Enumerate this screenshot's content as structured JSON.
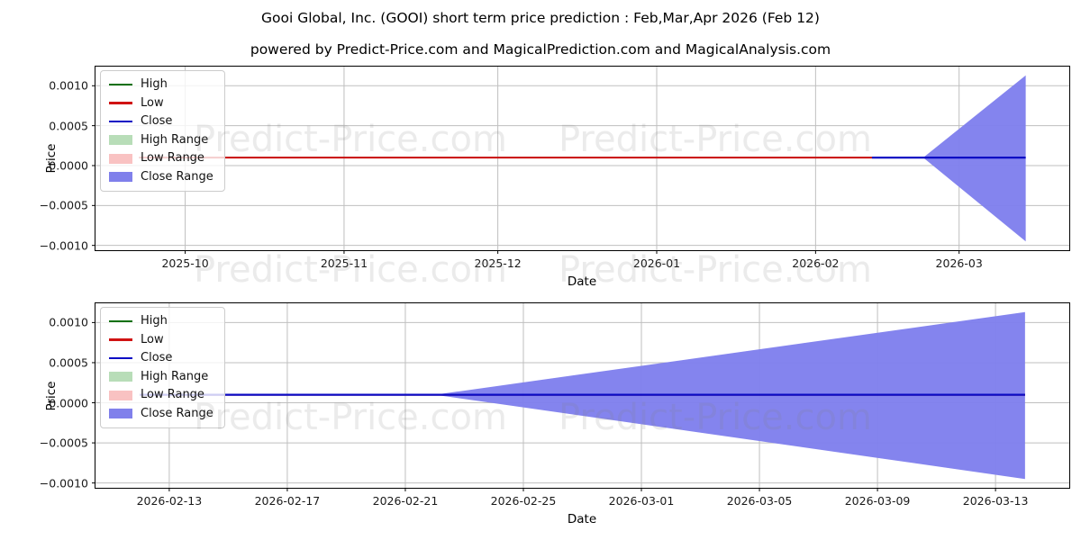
{
  "header": {
    "title": "Gooi Global, Inc. (GOOI) short term price prediction : Feb,Mar,Apr 2026 (Feb 12)",
    "subtitle": "powered by Predict-Price.com and MagicalPrediction.com and MagicalAnalysis.com"
  },
  "watermark": {
    "text": "Predict-Price.com"
  },
  "axes": {
    "xlabel": "Date",
    "ylabel": "Price"
  },
  "colors": {
    "high": "#0e700e",
    "low": "#d01212",
    "close": "#0b0bc4",
    "high_range": "#b8ddb8",
    "low_range": "#f9c2c2",
    "close_range": "#7f7fed",
    "grid": "#bfbfbf",
    "axis_border": "#000000"
  },
  "legend": {
    "items": [
      {
        "label": "High",
        "type": "line",
        "color": "#0e700e"
      },
      {
        "label": "Low",
        "type": "line",
        "color": "#d01212"
      },
      {
        "label": "Close",
        "type": "line",
        "color": "#0b0bc4"
      },
      {
        "label": "High Range",
        "type": "patch",
        "color": "#b8ddb8"
      },
      {
        "label": "Low Range",
        "type": "patch",
        "color": "#f9c2c2"
      },
      {
        "label": "Close Range",
        "type": "patch",
        "color": "#8080eb"
      }
    ]
  },
  "chart_data": [
    {
      "type": "line",
      "title": "history + short term prediction",
      "xlabel": "Date",
      "ylabel": "Price",
      "grid": true,
      "legend_position": "upper left",
      "xlim": [
        "2025-09-13T12:00:00",
        "2026-03-22T12:00:00"
      ],
      "ylim": [
        -0.00106,
        0.00124
      ],
      "x_ticks": [
        {
          "label": "2025-10",
          "date": "2025-10-01"
        },
        {
          "label": "2025-11",
          "date": "2025-11-01"
        },
        {
          "label": "2025-12",
          "date": "2025-12-01"
        },
        {
          "label": "2026-01",
          "date": "2026-01-01"
        },
        {
          "label": "2026-02",
          "date": "2026-02-01"
        },
        {
          "label": "2026-03",
          "date": "2026-03-01"
        }
      ],
      "y_ticks": [
        {
          "label": "0.0010",
          "value": 0.001
        },
        {
          "label": "0.0005",
          "value": 0.0005
        },
        {
          "label": "0.0000",
          "value": 0.0
        },
        {
          "label": "−0.0005",
          "value": -0.0005
        },
        {
          "label": "−0.0010",
          "value": -0.001
        }
      ],
      "series": [
        {
          "name": "High",
          "color": "#0e700e",
          "width": 1.8,
          "points": [
            {
              "date": "2025-09-22",
              "value": 0.0001
            },
            {
              "date": "2026-02-12",
              "value": 0.0001
            }
          ]
        },
        {
          "name": "Low",
          "color": "#d01212",
          "width": 2,
          "points": [
            {
              "date": "2025-09-22",
              "value": 0.0001
            },
            {
              "date": "2026-02-12",
              "value": 0.0001
            }
          ]
        },
        {
          "name": "Close",
          "color": "#0b0bc4",
          "width": 2.2,
          "points": [
            {
              "date": "2026-02-12",
              "value": 0.0001
            },
            {
              "date": "2026-03-14",
              "value": 0.0001
            }
          ]
        }
      ],
      "bands": [
        {
          "name": "Close Range",
          "color": "#7f7fed",
          "points": [
            {
              "date": "2026-02-22",
              "low": 0.0001,
              "high": 0.0001
            },
            {
              "date": "2026-03-14",
              "low": -0.00095,
              "high": 0.00113
            }
          ]
        }
      ]
    },
    {
      "type": "line",
      "title": "prediction detail",
      "xlabel": "Date",
      "ylabel": "Price",
      "grid": true,
      "legend_position": "upper left",
      "xlim": [
        "2026-02-10T12:00:00",
        "2026-03-15T12:00:00"
      ],
      "ylim": [
        -0.00106,
        0.00124
      ],
      "x_ticks": [
        {
          "label": "2026-02-13",
          "date": "2026-02-13"
        },
        {
          "label": "2026-02-17",
          "date": "2026-02-17"
        },
        {
          "label": "2026-02-21",
          "date": "2026-02-21"
        },
        {
          "label": "2026-02-25",
          "date": "2026-02-25"
        },
        {
          "label": "2026-03-01",
          "date": "2026-03-01"
        },
        {
          "label": "2026-03-05",
          "date": "2026-03-05"
        },
        {
          "label": "2026-03-09",
          "date": "2026-03-09"
        },
        {
          "label": "2026-03-13",
          "date": "2026-03-13"
        }
      ],
      "y_ticks": [
        {
          "label": "0.0010",
          "value": 0.001
        },
        {
          "label": "0.0005",
          "value": 0.0005
        },
        {
          "label": "0.0000",
          "value": 0.0
        },
        {
          "label": "−0.0005",
          "value": -0.0005
        },
        {
          "label": "−0.0010",
          "value": -0.001
        }
      ],
      "series": [
        {
          "name": "High",
          "color": "#0e700e",
          "width": 1.8,
          "points": [
            {
              "date": "2026-02-12",
              "value": 0.0001
            },
            {
              "date": "2026-03-14",
              "value": 0.0001
            }
          ]
        },
        {
          "name": "Low",
          "color": "#d01212",
          "width": 2,
          "points": [
            {
              "date": "2026-02-12",
              "value": 0.0001
            },
            {
              "date": "2026-03-14",
              "value": 0.0001
            }
          ]
        },
        {
          "name": "Close",
          "color": "#0b0bc4",
          "width": 2.2,
          "points": [
            {
              "date": "2026-02-12",
              "value": 0.0001
            },
            {
              "date": "2026-03-14",
              "value": 0.0001
            }
          ]
        }
      ],
      "bands": [
        {
          "name": "Close Range",
          "color": "#7f7fed",
          "points": [
            {
              "date": "2026-02-22",
              "low": 0.0001,
              "high": 0.0001
            },
            {
              "date": "2026-03-14",
              "low": -0.00095,
              "high": 0.00113
            }
          ]
        }
      ]
    }
  ]
}
